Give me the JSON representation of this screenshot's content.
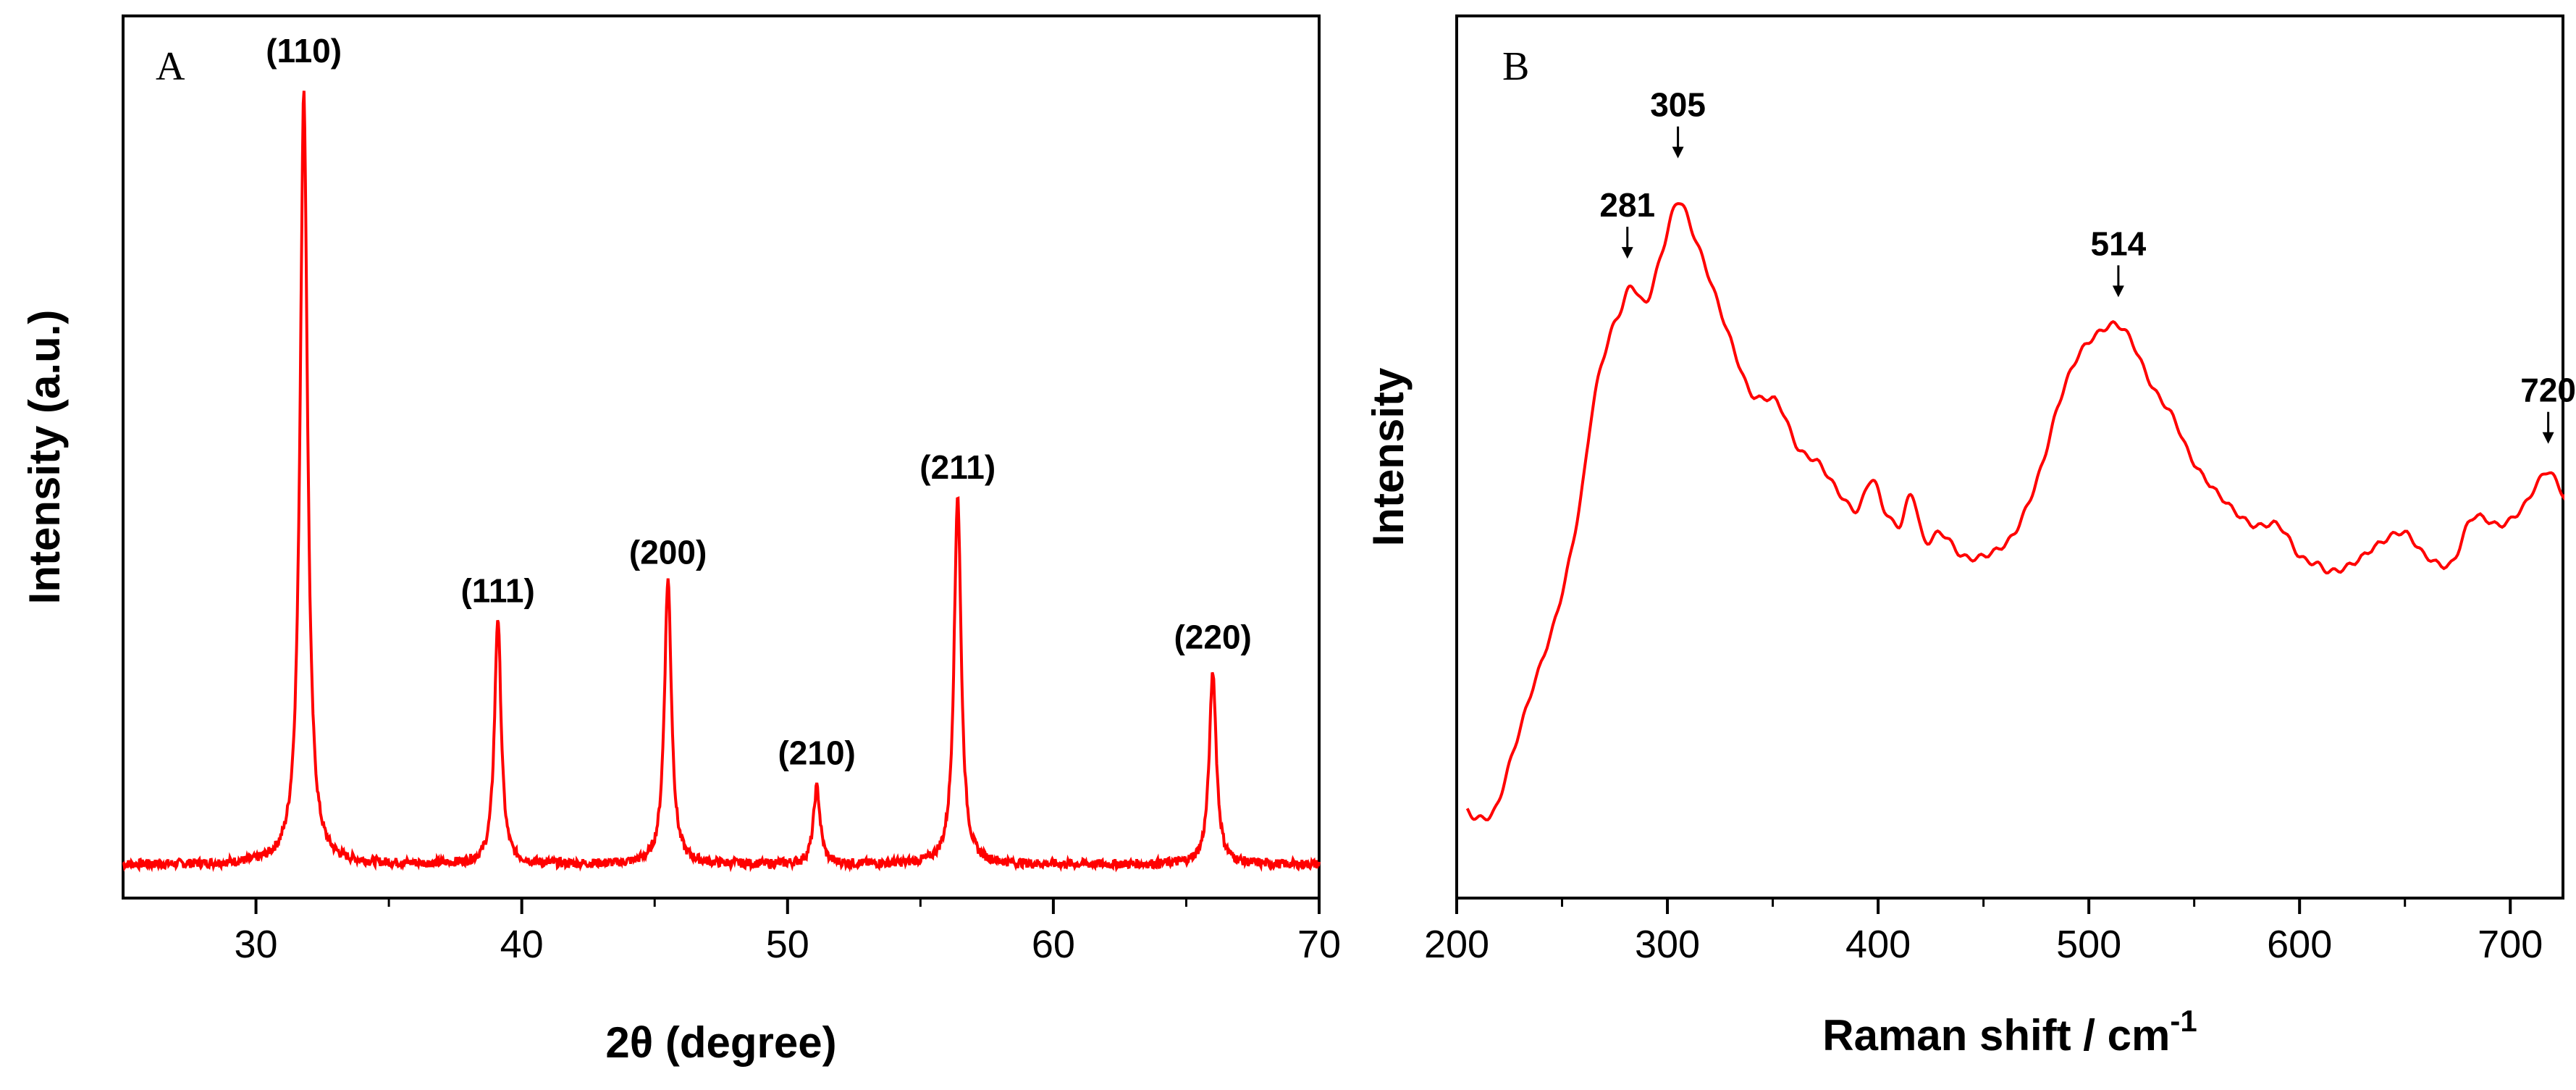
{
  "colors": {
    "curve": "#ff0000",
    "axis": "#000000",
    "background": "#ffffff"
  },
  "chart_data": [
    {
      "type": "line",
      "panel": "A",
      "title": "",
      "xlabel": "2θ (degree)",
      "ylabel": "Intensity (a.u.)",
      "xlim": [
        25,
        70
      ],
      "ylim": [
        0,
        100
      ],
      "xticks": [
        30,
        40,
        50,
        60,
        70
      ],
      "x_tick_labels": [
        "30",
        "40",
        "50",
        "60",
        "70"
      ],
      "y_tick_labels": [],
      "baseline": 2,
      "noise_amplitude": 0.6,
      "peaks": [
        {
          "x": 31.8,
          "height": 100,
          "width": 0.17
        },
        {
          "x": 39.1,
          "height": 32,
          "width": 0.15
        },
        {
          "x": 45.5,
          "height": 37,
          "width": 0.16
        },
        {
          "x": 51.1,
          "height": 10,
          "width": 0.15
        },
        {
          "x": 56.4,
          "height": 48,
          "width": 0.16
        },
        {
          "x": 66.0,
          "height": 25,
          "width": 0.16
        }
      ],
      "annotations": [
        {
          "label": "(110)",
          "x": 31.8,
          "y": 106
        },
        {
          "label": "(111)",
          "x": 39.1,
          "y": 36
        },
        {
          "label": "(200)",
          "x": 45.5,
          "y": 41
        },
        {
          "label": "(210)",
          "x": 51.1,
          "y": 15
        },
        {
          "label": "(211)",
          "x": 56.4,
          "y": 52
        },
        {
          "label": "(220)",
          "x": 66.0,
          "y": 30
        }
      ]
    },
    {
      "type": "line",
      "panel": "B",
      "title": "",
      "xlabel": "Raman shift / cm",
      "xlabel_superscript": "-1",
      "ylabel": "Intensity",
      "xlim": [
        200,
        725
      ],
      "ylim": [
        0,
        100
      ],
      "xticks": [
        200,
        300,
        400,
        500,
        600,
        700
      ],
      "x_tick_labels": [
        "200",
        "300",
        "400",
        "500",
        "600",
        "700"
      ],
      "y_tick_labels": [],
      "x": [
        205,
        210,
        218,
        225,
        235,
        248,
        258,
        265,
        272,
        278,
        283,
        290,
        298,
        305,
        312,
        320,
        330,
        340,
        352,
        362,
        372,
        382,
        390,
        397,
        403,
        410,
        416,
        422,
        430,
        440,
        450,
        462,
        470,
        478,
        486,
        495,
        505,
        513,
        520,
        530,
        540,
        550,
        565,
        578,
        590,
        600,
        608,
        615,
        625,
        640,
        650,
        660,
        672,
        682,
        695,
        705,
        712,
        718,
        725
      ],
      "y": [
        9,
        8,
        9,
        15,
        24,
        35,
        48,
        62,
        70,
        74,
        77,
        75,
        82,
        88,
        84,
        78,
        70,
        63,
        62,
        56,
        54,
        50,
        48,
        52,
        48,
        46,
        50,
        44,
        45,
        42,
        42,
        44,
        48,
        54,
        62,
        68,
        71,
        72,
        70,
        64,
        60,
        54,
        49,
        46,
        46,
        42,
        41,
        40,
        41,
        44,
        45,
        42,
        41,
        47,
        46,
        48,
        51,
        53,
        50
      ],
      "annotations": [
        {
          "label": "281",
          "x": 281,
          "y": 86
        },
        {
          "label": "305",
          "x": 305,
          "y": 99
        },
        {
          "label": "514",
          "x": 514,
          "y": 81
        },
        {
          "label": "720",
          "x": 718,
          "y": 62
        }
      ]
    }
  ],
  "panels": {
    "a_letter": "A",
    "b_letter": "B"
  }
}
